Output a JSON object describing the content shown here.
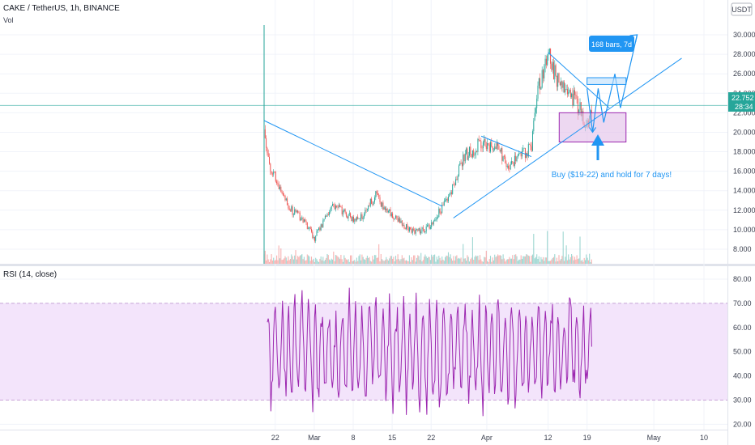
{
  "header": {
    "title": "CAKE / TetherUS, 1h, BINANCE",
    "vol_label": "Vol",
    "currency_badge": "USDT"
  },
  "chart_data": [
    {
      "type": "candlestick",
      "symbol": "CAKE / TetherUS",
      "timeframe": "1h",
      "exchange": "BINANCE",
      "currency": "USDT",
      "y_ticks": [
        "30.000",
        "28.000",
        "26.000",
        "24.000",
        "22.000",
        "20.000",
        "18.000",
        "16.000",
        "14.000",
        "12.000",
        "10.000",
        "8.000"
      ],
      "ylim": [
        6.5,
        31
      ],
      "x_ticks": [
        "22",
        "Mar",
        "8",
        "15",
        "22",
        "Apr",
        "12",
        "19",
        "May",
        "10"
      ],
      "x_tick_dates": [
        "2021-02-22",
        "2021-03-01",
        "2021-03-08",
        "2021-03-15",
        "2021-03-22",
        "2021-04-01",
        "2021-04-12",
        "2021-04-19",
        "2021-05-01",
        "2021-05-10"
      ],
      "price_path": {
        "dates": [
          "2021-02-20",
          "2021-02-21",
          "2021-02-23",
          "2021-02-25",
          "2021-02-27",
          "2021-03-01",
          "2021-03-04",
          "2021-03-07",
          "2021-03-09",
          "2021-03-12",
          "2021-03-14",
          "2021-03-16",
          "2021-03-18",
          "2021-03-20",
          "2021-03-21",
          "2021-03-23",
          "2021-03-25",
          "2021-03-28",
          "2021-03-31",
          "2021-04-03",
          "2021-04-05",
          "2021-04-07",
          "2021-04-09",
          "2021-04-10",
          "2021-04-11",
          "2021-04-12",
          "2021-04-14",
          "2021-04-16",
          "2021-04-18",
          "2021-04-19",
          "2021-04-20",
          "2021-04-21"
        ],
        "prices": [
          20.0,
          16.5,
          14.0,
          12.0,
          11.0,
          9.0,
          12.5,
          11.5,
          11.0,
          13.5,
          12.0,
          11.0,
          10.0,
          9.8,
          9.9,
          11.5,
          13.0,
          17.5,
          19.0,
          18.5,
          16.5,
          17.5,
          18.5,
          24.0,
          26.0,
          28.0,
          25.0,
          24.0,
          22.0,
          20.5,
          22.8,
          22.75
        ]
      },
      "last_price": "22.752",
      "countdown": "28:34",
      "annotations": {
        "bars_label": "168 bars, 7d",
        "buy_label": "Buy ($19-22) and hold for 7 days!",
        "buy_zone": [
          19,
          22
        ],
        "vertical_marker": "2021-02-20",
        "hline": 22.75
      },
      "trendlines": [
        {
          "from": [
            "2021-02-20",
            21.2
          ],
          "to": [
            "2021-03-24",
            12.4
          ]
        },
        {
          "from": [
            "2021-03-26",
            11.2
          ],
          "to": [
            "2021-05-06",
            27.6
          ]
        },
        {
          "from": [
            "2021-03-31",
            19.6
          ],
          "to": [
            "2021-04-09",
            17.5
          ]
        },
        {
          "from": [
            "2021-04-12",
            28.2
          ],
          "to": [
            "2021-04-23",
            22.5
          ]
        }
      ]
    },
    {
      "type": "line",
      "title": "RSI (14, close)",
      "series": [
        {
          "name": "RSI (14, close)",
          "color": "#9c27b0"
        }
      ],
      "y_ticks": [
        "80.00",
        "70.00",
        "60.00",
        "50.00",
        "40.00",
        "30.00",
        "20.00"
      ],
      "ylim": [
        17.8,
        85
      ],
      "band": [
        30,
        70
      ],
      "range": [
        22,
        83
      ]
    }
  ],
  "colors": {
    "up": "#26a69a",
    "down": "#ef5350",
    "accent": "#2196f3",
    "rsi_line": "#9c27b0",
    "rsi_band": "#f3e4fb",
    "zone_fill": "#e1bee7",
    "zone_stroke": "#9c27b0"
  }
}
